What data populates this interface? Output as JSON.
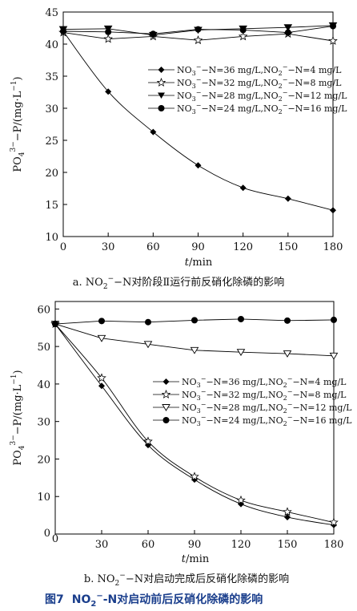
{
  "figure_caption": {
    "label": "图7",
    "main": "NO",
    "sub": "2",
    "sup": "−",
    "rest": "-N对启动前后反硝化除磷的影响"
  },
  "y_label": {
    "pre": "PO",
    "sub": "4",
    "sup": "3−",
    "post": "−P/(mg·L",
    "sup2": "−1",
    "close": ")"
  },
  "x_label": {
    "italic": "t",
    "rest": "/min"
  },
  "legend": [
    {
      "pre": "NO",
      "sub1": "3",
      "sup1": "−",
      "mid": "−N=36 mg/L,NO",
      "sub2": "2",
      "sup2": "−",
      "post": "−N=4 mg/L"
    },
    {
      "pre": "NO",
      "sub1": "3",
      "sup1": "−",
      "mid": "−N=32 mg/L,NO",
      "sub2": "2",
      "sup2": "−",
      "post": "−N=8 mg/L"
    },
    {
      "pre": "NO",
      "sub1": "3",
      "sup1": "−",
      "mid": "−N=28 mg/L,NO",
      "sub2": "2",
      "sup2": "−",
      "post": "−N=12 mg/L"
    },
    {
      "pre": "NO",
      "sub1": "3",
      "sup1": "−",
      "mid": "−N=24 mg/L,NO",
      "sub2": "2",
      "sup2": "−",
      "post": "−N=16 mg/L"
    }
  ],
  "chart_data": [
    {
      "type": "line",
      "caption": {
        "pre": "a. NO",
        "sub": "2",
        "sup": "−",
        "post": "−N对阶段Ⅱ运行前反硝化除磷的影响"
      },
      "x": [
        0,
        30,
        60,
        90,
        120,
        150,
        180
      ],
      "xticks": [
        0,
        30,
        60,
        90,
        120,
        150,
        180
      ],
      "xlim": [
        0,
        180
      ],
      "yticks": [
        10,
        15,
        20,
        25,
        30,
        35,
        40,
        45
      ],
      "ylim": [
        10,
        45
      ],
      "legend_position": "center-right",
      "series": [
        {
          "marker": "diamond",
          "values": [
            42.0,
            32.6,
            26.3,
            21.1,
            17.6,
            15.9,
            14.1
          ]
        },
        {
          "marker": "star",
          "values": [
            41.8,
            40.8,
            41.2,
            40.6,
            41.2,
            41.6,
            40.5
          ]
        },
        {
          "marker": "triangle-down",
          "values": [
            42.3,
            42.4,
            41.4,
            42.2,
            42.4,
            42.6,
            42.9
          ]
        },
        {
          "marker": "circle",
          "values": [
            42.0,
            41.9,
            41.6,
            42.3,
            42.2,
            41.8,
            42.8
          ]
        }
      ]
    },
    {
      "type": "line",
      "caption": {
        "pre": "b. NO",
        "sub": "2",
        "sup": "−",
        "post": "−N对启动完成后反硝化除磷的影响"
      },
      "x": [
        0,
        30,
        60,
        90,
        120,
        150,
        180
      ],
      "xticks": [
        30,
        60,
        90,
        120,
        150,
        180
      ],
      "extra_ticklabel": "0",
      "xlim": [
        0,
        180
      ],
      "yticks": [
        10,
        20,
        30,
        40,
        50,
        60
      ],
      "extra_yticklabel": "0",
      "ylim": [
        0,
        62
      ],
      "legend_position": "center-right",
      "series": [
        {
          "marker": "diamond",
          "values": [
            56.0,
            39.5,
            23.7,
            14.5,
            8.0,
            4.5,
            2.4
          ]
        },
        {
          "marker": "star",
          "values": [
            56.0,
            41.6,
            24.7,
            15.3,
            9.0,
            5.9,
            3.1
          ]
        },
        {
          "marker": "triangle-down",
          "values": [
            56.0,
            52.2,
            50.6,
            49.0,
            48.5,
            48.1,
            47.5
          ]
        },
        {
          "marker": "circle",
          "values": [
            56.0,
            56.8,
            56.5,
            57.0,
            57.3,
            56.9,
            57.1
          ]
        }
      ]
    }
  ]
}
